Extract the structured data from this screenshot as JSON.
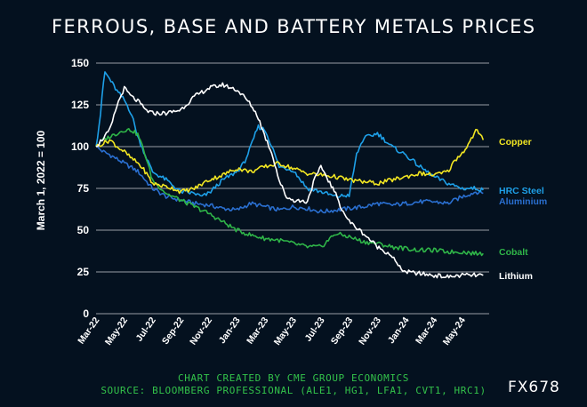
{
  "title": "FERROUS, BASE AND BATTERY METALS PRICES",
  "credit_line1": "CHART CREATED BY CME GROUP ECONOMICS",
  "credit_line2": "SOURCE: BLOOMBERG PROFESSIONAL (ALE1, HG1, LFA1, CVT1, HRC1)",
  "code": "FX678",
  "chart_data": {
    "type": "line",
    "title": "FERROUS, BASE AND BATTERY METALS PRICES",
    "ylabel": "March 1, 2022 = 100",
    "xlabel": "",
    "ylim": [
      0,
      150
    ],
    "yticks": [
      0,
      25,
      50,
      75,
      100,
      125,
      150
    ],
    "grid": "horizontal",
    "legend": "right (end-of-line labels)",
    "x_tick_labels": [
      "Mar-22",
      "May-22",
      "Jul-22",
      "Sep-22",
      "Nov-22",
      "Jan-23",
      "Mar-23",
      "May-23",
      "Jul-23",
      "Sep-23",
      "Nov-23",
      "Jan-24",
      "Mar-24",
      "May-24"
    ],
    "x_range_months": [
      0,
      27.8
    ],
    "series": [
      {
        "name": "Copper",
        "color": "#f2e622",
        "x": [
          0,
          0.5,
          1,
          1.5,
          2,
          2.5,
          3,
          3.5,
          4,
          4.5,
          5,
          5.5,
          6,
          7,
          8,
          9,
          10,
          11,
          12,
          13,
          14,
          15,
          16,
          17,
          18,
          19,
          20,
          21,
          22,
          23,
          24,
          25,
          25.5,
          26,
          26.5,
          27,
          27.5
        ],
        "values": [
          100,
          102,
          104,
          100,
          97,
          93,
          90,
          85,
          78,
          77,
          76,
          75,
          73,
          75,
          80,
          83,
          87,
          85,
          88,
          90,
          87,
          84,
          83,
          82,
          80,
          79,
          78,
          80,
          82,
          84,
          83,
          85,
          92,
          96,
          102,
          110,
          104
        ]
      },
      {
        "name": "HRC Steel",
        "color": "#1ea0e8",
        "x": [
          0,
          0.3,
          0.6,
          1,
          1.5,
          2,
          2.5,
          3,
          3.5,
          4,
          5,
          6,
          7,
          7.5,
          8,
          9,
          10,
          10.5,
          11,
          11.5,
          12,
          12.5,
          13,
          14,
          15,
          16,
          17,
          18,
          18.5,
          19,
          20,
          21,
          22,
          23,
          24,
          25,
          26,
          27,
          27.5
        ],
        "values": [
          100,
          118,
          145,
          140,
          133,
          128,
          120,
          105,
          95,
          85,
          80,
          73,
          72,
          70,
          72,
          80,
          85,
          90,
          100,
          112,
          110,
          100,
          88,
          86,
          75,
          73,
          70,
          71,
          95,
          105,
          108,
          100,
          95,
          88,
          82,
          78,
          75,
          75,
          74
        ]
      },
      {
        "name": "Aluminium",
        "color": "#2a6fd0",
        "x": [
          0,
          0.5,
          1,
          2,
          3,
          4,
          5,
          6,
          7,
          8,
          9,
          10,
          11,
          12,
          13,
          14,
          15,
          16,
          17,
          18,
          19,
          20,
          21,
          22,
          23,
          24,
          25,
          26,
          27,
          27.5
        ],
        "values": [
          100,
          97,
          95,
          90,
          85,
          75,
          70,
          68,
          66,
          65,
          63,
          62,
          66,
          64,
          62,
          64,
          63,
          61,
          62,
          63,
          64,
          66,
          65,
          66,
          67,
          67,
          66,
          70,
          73,
          72
        ]
      },
      {
        "name": "Cobalt",
        "color": "#2fb548",
        "x": [
          0,
          0.5,
          1,
          1.5,
          2,
          2.5,
          3,
          3.5,
          4,
          5,
          6,
          7,
          8,
          9,
          10,
          11,
          12,
          13,
          14,
          15,
          16,
          17,
          18,
          19,
          20,
          21,
          22,
          23,
          24,
          25,
          26,
          27,
          27.5
        ],
        "values": [
          100,
          104,
          106,
          108,
          110,
          110,
          107,
          95,
          80,
          72,
          68,
          64,
          60,
          55,
          50,
          47,
          45,
          44,
          42,
          40,
          40,
          48,
          46,
          43,
          42,
          40,
          39,
          38,
          38,
          37,
          37,
          36,
          36
        ]
      },
      {
        "name": "Lithium",
        "color": "#ffffff",
        "x": [
          0,
          0.5,
          1,
          1.5,
          2,
          2.5,
          3,
          3.5,
          4,
          5,
          6,
          7,
          8,
          9,
          10,
          10.5,
          11,
          11.5,
          12,
          12.5,
          13,
          13.5,
          14,
          15,
          15.5,
          16,
          17,
          17.5,
          18,
          19,
          20,
          21,
          21.5,
          22,
          23,
          24,
          25,
          26,
          27,
          27.5
        ],
        "values": [
          100,
          105,
          110,
          125,
          135,
          130,
          127,
          122,
          120,
          120,
          122,
          130,
          135,
          137,
          134,
          130,
          125,
          118,
          106,
          96,
          80,
          70,
          68,
          67,
          80,
          88,
          72,
          62,
          55,
          48,
          40,
          35,
          28,
          25,
          24,
          23,
          22,
          23,
          23,
          23
        ]
      }
    ]
  }
}
